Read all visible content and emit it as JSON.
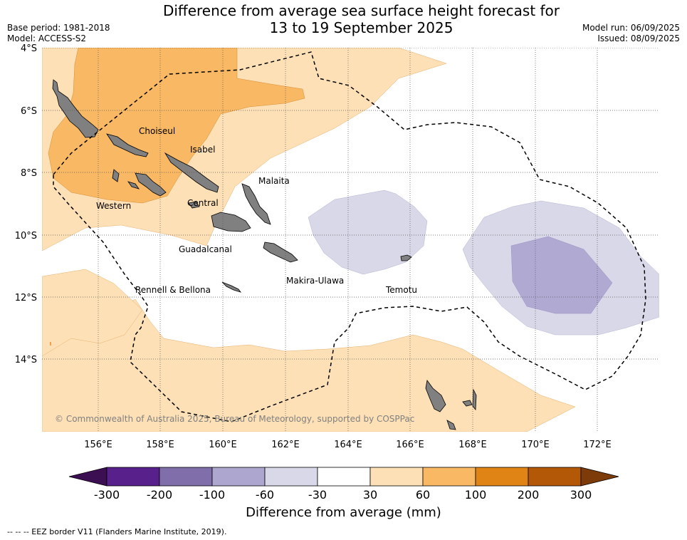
{
  "title_line1": "Difference from average sea surface height forecast for",
  "title_line2": "13 to 19 September 2025",
  "base_period": "Base period: 1981-2018",
  "model": "Model: ACCESS-S2",
  "model_run": "Model run: 06/09/2025",
  "issued": "Issued: 08/09/2025",
  "lat_labels": [
    "4°S",
    "6°S",
    "8°S",
    "10°S",
    "12°S",
    "14°S"
  ],
  "lon_labels": [
    "156°E",
    "158°E",
    "160°E",
    "162°E",
    "164°E",
    "166°E",
    "168°E",
    "170°E",
    "172°E"
  ],
  "regions": {
    "choiseul": "Choiseul",
    "isabel": "Isabel",
    "malaita": "Malaita",
    "western": "Western",
    "central": "Central",
    "guadalcanal": "Guadalcanal",
    "rennell": "Rennell & Bellona",
    "makira": "Makira-Ulawa",
    "temotu": "Temotu"
  },
  "copyright": "© Commonwealth of Australia 2025, Bureau of Meteorology, supported by COSPPac",
  "colorbar": {
    "ticks": [
      "-300",
      "-200",
      "-100",
      "-60",
      "-30",
      "30",
      "60",
      "100",
      "200",
      "300"
    ],
    "colors": [
      "#3b0f52",
      "#58208a",
      "#7f6ea9",
      "#ada7cf",
      "#d8d8e8",
      "#ffffff",
      "#fde0b6",
      "#f9b863",
      "#e08416",
      "#b35807",
      "#7d3b09"
    ],
    "label": "Difference from average (mm)"
  },
  "footnote": "--  --  -- EEZ border V11 (Flanders Marine Institute, 2019)."
}
